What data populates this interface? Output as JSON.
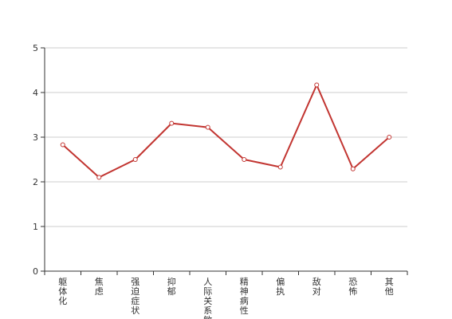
{
  "chart_data": {
    "type": "line",
    "categories": [
      "躯体化",
      "焦虑",
      "强迫症状",
      "抑郁",
      "人际关系敏感",
      "精神病性",
      "偏执",
      "敌对",
      "恐怖",
      "其他"
    ],
    "series": [
      {
        "values": [
          2.83,
          2.1,
          2.5,
          3.31,
          3.22,
          2.5,
          2.33,
          4.17,
          2.29,
          3.0
        ],
        "color": "#c23531"
      }
    ],
    "ylim": [
      0,
      5
    ],
    "yticks": [
      0,
      1,
      2,
      3,
      4,
      5
    ],
    "grid": true,
    "legend": "none",
    "colors": {
      "axis": "#333333",
      "grid": "#cccccc",
      "text": "#333333"
    }
  }
}
